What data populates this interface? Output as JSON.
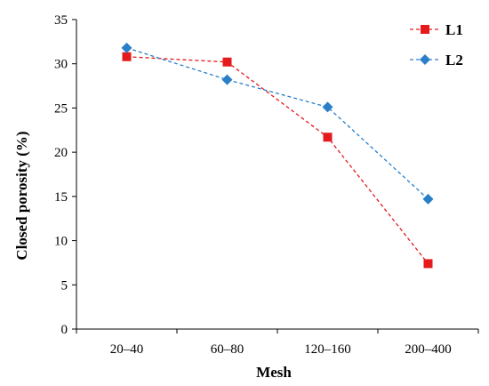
{
  "chart_data": {
    "type": "line",
    "categories": [
      "20–40",
      "60–80",
      "120–160",
      "200–400"
    ],
    "series": [
      {
        "name": "L1",
        "values": [
          30.8,
          30.2,
          21.7,
          7.4
        ],
        "color": "#e41a1c",
        "marker": "square"
      },
      {
        "name": "L2",
        "values": [
          31.8,
          28.2,
          25.1,
          14.7
        ],
        "color": "#2a7fc9",
        "marker": "diamond"
      }
    ],
    "xlabel": "Mesh",
    "ylabel": "Closed porosity  (%)",
    "ylim": [
      0,
      35
    ],
    "yticks": [
      "0",
      "5",
      "10",
      "15",
      "20",
      "25",
      "30",
      "35"
    ],
    "grid": false,
    "legend": "top-right"
  }
}
